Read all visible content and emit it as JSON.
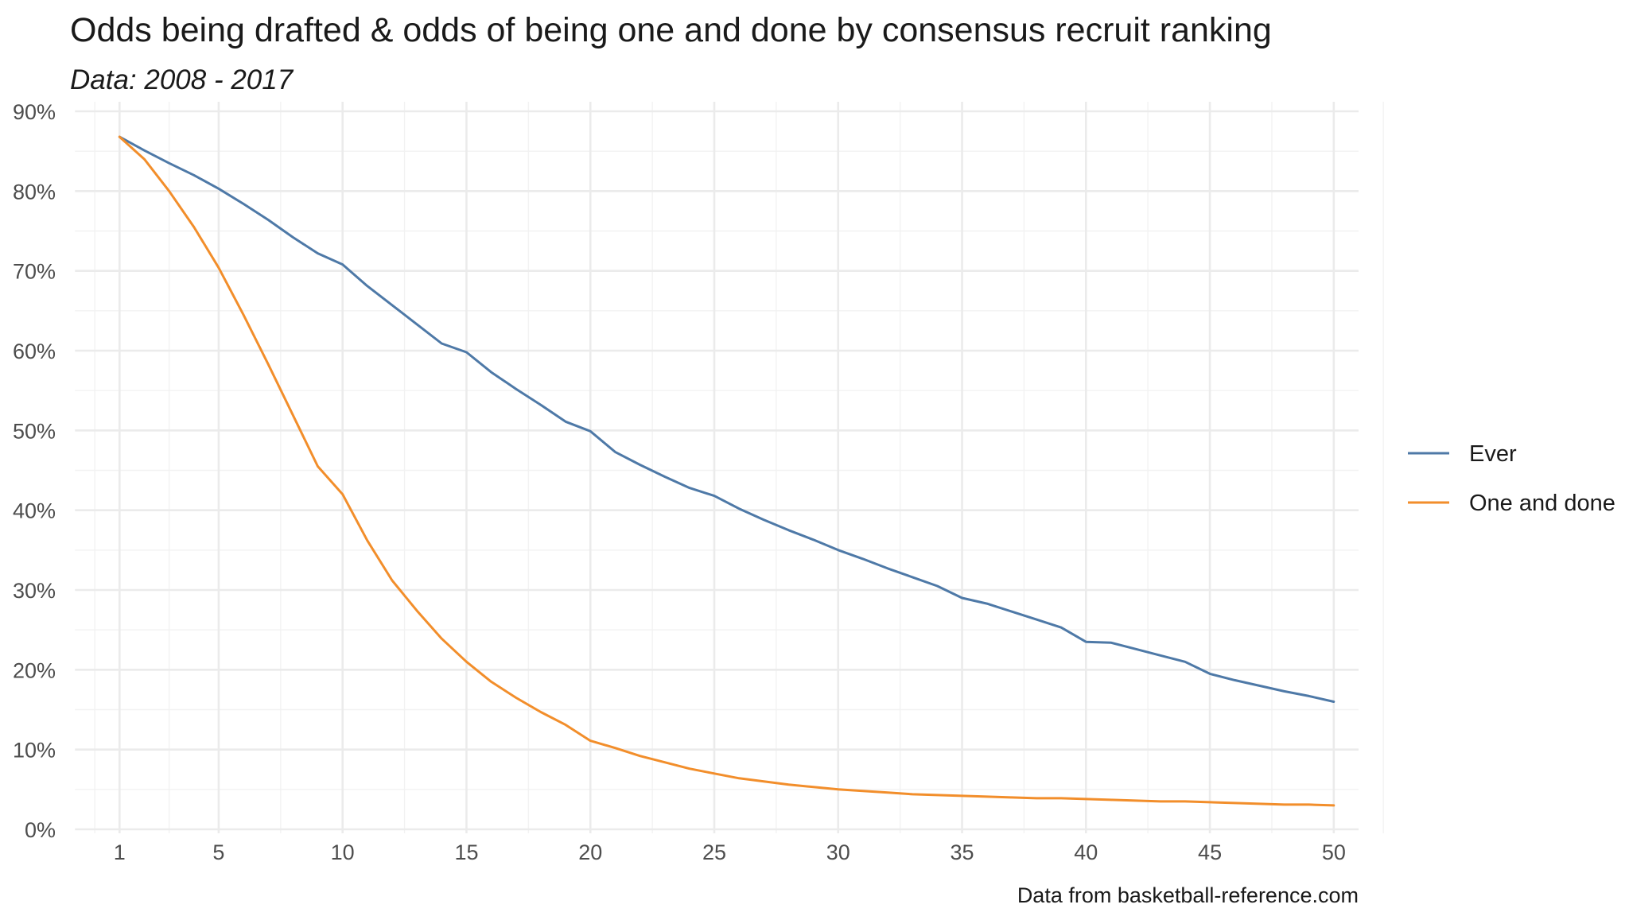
{
  "chart_data": {
    "type": "line",
    "title": "Odds being drafted & odds of being one and done by consensus recruit ranking",
    "subtitle": "Data: 2008 - 2017",
    "caption": "Data from basketball-reference.com",
    "xlabel": "",
    "ylabel": "",
    "x_ticks": [
      1,
      5,
      10,
      15,
      20,
      25,
      30,
      35,
      40,
      45,
      50
    ],
    "y_ticks": [
      0,
      10,
      20,
      30,
      40,
      50,
      60,
      70,
      80,
      90
    ],
    "y_tick_format": "percent",
    "xlim": [
      -1,
      51
    ],
    "ylim": [
      0,
      90
    ],
    "grid": true,
    "legend_position": "right",
    "x": [
      1,
      2,
      3,
      4,
      5,
      6,
      7,
      8,
      9,
      10,
      11,
      12,
      13,
      14,
      15,
      16,
      17,
      18,
      19,
      20,
      21,
      22,
      23,
      24,
      25,
      26,
      27,
      28,
      29,
      30,
      31,
      32,
      33,
      34,
      35,
      36,
      37,
      38,
      39,
      40,
      41,
      42,
      43,
      44,
      45,
      46,
      47,
      48,
      49,
      50
    ],
    "series": [
      {
        "name": "Ever",
        "color": "#4e79a7",
        "values": [
          86.8,
          85.1,
          83.5,
          82.0,
          80.3,
          78.4,
          76.4,
          74.2,
          72.2,
          70.8,
          68.1,
          65.7,
          63.3,
          60.9,
          59.8,
          57.3,
          55.2,
          53.2,
          51.1,
          49.9,
          47.3,
          45.7,
          44.2,
          42.8,
          41.8,
          40.2,
          38.8,
          37.5,
          36.3,
          35.0,
          33.9,
          32.7,
          31.6,
          30.5,
          29.0,
          28.3,
          27.3,
          26.3,
          25.3,
          23.5,
          23.4,
          22.6,
          21.8,
          21.0,
          19.5,
          18.7,
          18.0,
          17.3,
          16.7,
          16.0
        ]
      },
      {
        "name": "One and done",
        "color": "#f28e2b",
        "values": [
          86.8,
          84.0,
          80.0,
          75.5,
          70.4,
          64.5,
          58.3,
          51.9,
          45.5,
          42.0,
          36.2,
          31.2,
          27.4,
          23.9,
          21.0,
          18.5,
          16.5,
          14.7,
          13.1,
          11.1,
          10.2,
          9.2,
          8.4,
          7.6,
          7.0,
          6.4,
          6.0,
          5.6,
          5.3,
          5.0,
          4.8,
          4.6,
          4.4,
          4.3,
          4.2,
          4.1,
          4.0,
          3.9,
          3.9,
          3.8,
          3.7,
          3.6,
          3.5,
          3.5,
          3.4,
          3.3,
          3.2,
          3.1,
          3.1,
          3.0
        ]
      }
    ]
  }
}
